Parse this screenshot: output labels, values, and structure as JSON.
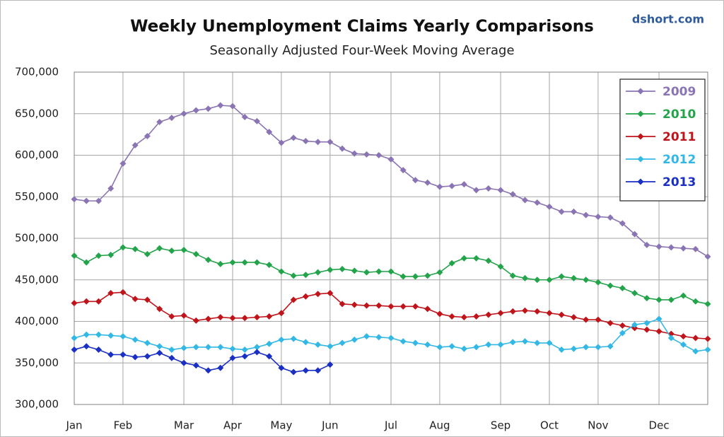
{
  "chart_data": {
    "type": "line",
    "title": "Weekly Unemployment Claims Yearly Comparisons",
    "subtitle": "Seasonally Adjusted Four-Week Moving Average",
    "source": "dshort.com",
    "categories": [
      "Jan",
      null,
      null,
      null,
      "Feb",
      null,
      null,
      null,
      null,
      "Mar",
      null,
      null,
      null,
      "Apr",
      null,
      null,
      null,
      "May",
      null,
      null,
      null,
      "Jun",
      null,
      null,
      null,
      null,
      "Jul",
      null,
      null,
      null,
      "Aug",
      null,
      null,
      null,
      null,
      "Sep",
      null,
      null,
      null,
      "Oct",
      null,
      null,
      null,
      "Nov",
      null,
      null,
      null,
      null,
      "Dec",
      null,
      null,
      null,
      null
    ],
    "series": [
      {
        "name": "2009",
        "color": "#8a74b4",
        "values": [
          547000,
          545000,
          545000,
          560000,
          590000,
          612000,
          623000,
          640000,
          645000,
          650000,
          654000,
          656000,
          660000,
          659000,
          646000,
          641000,
          628000,
          615000,
          621000,
          617000,
          616000,
          616000,
          608000,
          602000,
          601000,
          600000,
          595000,
          582000,
          570000,
          567000,
          562000,
          563000,
          565000,
          558000,
          560000,
          558000,
          553000,
          546000,
          543000,
          538000,
          532000,
          532000,
          528000,
          526000,
          525000,
          518000,
          505000,
          492000,
          490000,
          489000,
          488000,
          487000,
          478000
        ]
      },
      {
        "name": "2010",
        "color": "#23a44a",
        "values": [
          479000,
          471000,
          479000,
          480000,
          489000,
          487000,
          481000,
          488000,
          485000,
          486000,
          481000,
          474000,
          469000,
          471000,
          471000,
          471000,
          468000,
          460000,
          455000,
          456000,
          459000,
          462000,
          463000,
          461000,
          459000,
          460000,
          460000,
          454000,
          454000,
          455000,
          459000,
          470000,
          476000,
          476000,
          473000,
          466000,
          455000,
          452000,
          450000,
          450000,
          454000,
          452000,
          450000,
          447000,
          443000,
          440000,
          434000,
          428000,
          426000,
          426000,
          431000,
          424000,
          421000
        ]
      },
      {
        "name": "2011",
        "color": "#c0141b",
        "values": [
          422000,
          424000,
          424000,
          434000,
          435000,
          427000,
          426000,
          415000,
          406000,
          407000,
          401000,
          403000,
          405000,
          404000,
          404000,
          405000,
          406000,
          410000,
          426000,
          430000,
          433000,
          434000,
          421000,
          420000,
          419000,
          419000,
          418000,
          418000,
          418000,
          415000,
          409000,
          406000,
          405000,
          406000,
          408000,
          410000,
          412000,
          413000,
          412000,
          410000,
          408000,
          405000,
          402000,
          402000,
          398000,
          395000,
          392000,
          390000,
          388000,
          385000,
          382000,
          380000,
          379000
        ]
      },
      {
        "name": "2012",
        "color": "#33b8e6",
        "values": [
          380000,
          384000,
          384000,
          383000,
          382000,
          378000,
          374000,
          370000,
          366000,
          368000,
          369000,
          369000,
          369000,
          367000,
          366000,
          369000,
          373000,
          378000,
          379000,
          375000,
          372000,
          370000,
          374000,
          378000,
          382000,
          381000,
          380000,
          376000,
          374000,
          372000,
          369000,
          370000,
          367000,
          369000,
          372000,
          372000,
          375000,
          376000,
          374000,
          374000,
          366000,
          367000,
          369000,
          369000,
          370000,
          386000,
          396000,
          398000,
          403000,
          380000,
          372000,
          364000,
          366000
        ]
      },
      {
        "name": "2013",
        "color": "#1a2fc4",
        "values": [
          366000,
          370000,
          366000,
          360000,
          360000,
          357000,
          358000,
          362000,
          356000,
          350000,
          347000,
          341000,
          344000,
          356000,
          358000,
          363000,
          358000,
          344000,
          339000,
          341000,
          341000,
          348000,
          null,
          null,
          null,
          null,
          null,
          null,
          null,
          null,
          null,
          null,
          null,
          null,
          null,
          null,
          null,
          null,
          null,
          null,
          null,
          null,
          null,
          null,
          null,
          null,
          null,
          null,
          null,
          null,
          null,
          null,
          null
        ]
      }
    ],
    "ylim": [
      300000,
      700000
    ],
    "yticks": [
      {
        "value": 300000,
        "label": "300,000"
      },
      {
        "value": 350000,
        "label": "350,000"
      },
      {
        "value": 400000,
        "label": "400,000"
      },
      {
        "value": 450000,
        "label": "450,000"
      },
      {
        "value": 500000,
        "label": "500,000"
      },
      {
        "value": 550000,
        "label": "550,000"
      },
      {
        "value": 600000,
        "label": "600,000"
      },
      {
        "value": 650000,
        "label": "650,000"
      },
      {
        "value": 700000,
        "label": "700,000"
      }
    ],
    "grid": true,
    "legend": "upper right"
  }
}
